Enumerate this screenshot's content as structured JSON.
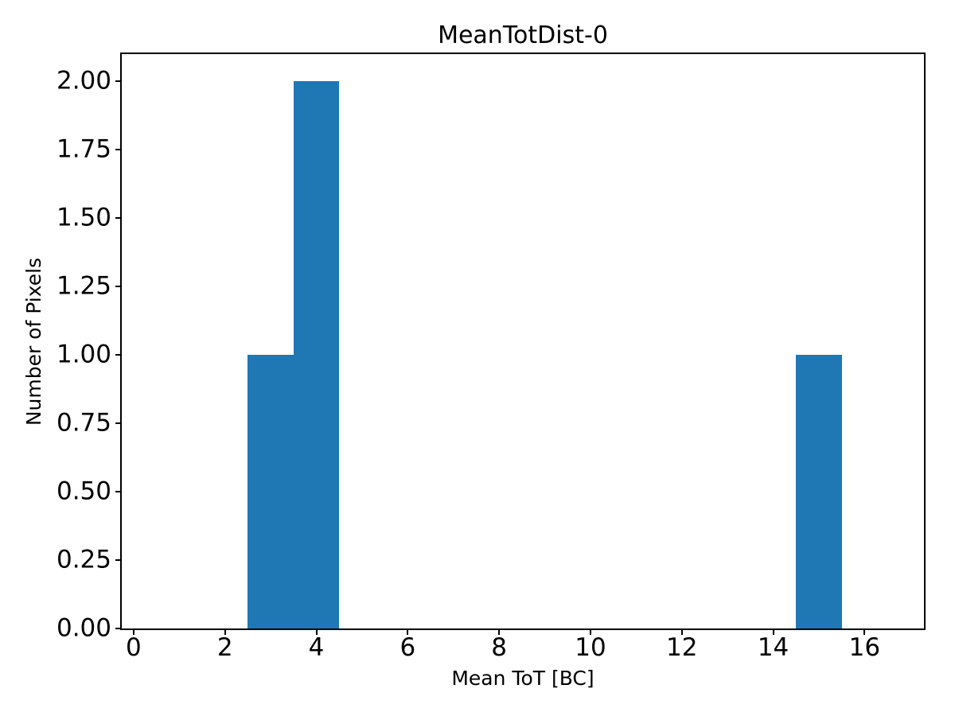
{
  "chart_data": {
    "type": "bar",
    "subtype": "histogram",
    "title": "MeanTotDist-0",
    "xlabel": "Mean ToT [BC]",
    "ylabel": "Number of Pixels",
    "bar_color": "#1f77b4",
    "axis_color": "#000000",
    "background_color": "#ffffff",
    "grid": false,
    "legend": "none",
    "xlim": [
      -0.26,
      17.3
    ],
    "ylim": [
      0,
      2.1
    ],
    "x_ticks": [
      0,
      2,
      4,
      6,
      8,
      10,
      12,
      14,
      16
    ],
    "y_ticks": [
      {
        "value": 0.0,
        "label": "0.00"
      },
      {
        "value": 0.25,
        "label": "0.25"
      },
      {
        "value": 0.5,
        "label": "0.50"
      },
      {
        "value": 0.75,
        "label": "0.75"
      },
      {
        "value": 1.0,
        "label": "1.00"
      },
      {
        "value": 1.25,
        "label": "1.25"
      },
      {
        "value": 1.5,
        "label": "1.50"
      },
      {
        "value": 1.75,
        "label": "1.75"
      },
      {
        "value": 2.0,
        "label": "2.00"
      }
    ],
    "bins": [
      {
        "x_start": 2.5,
        "x_end": 3.5,
        "count": 1
      },
      {
        "x_start": 3.5,
        "x_end": 4.5,
        "count": 2
      },
      {
        "x_start": 14.5,
        "x_end": 15.5,
        "count": 1
      }
    ]
  }
}
